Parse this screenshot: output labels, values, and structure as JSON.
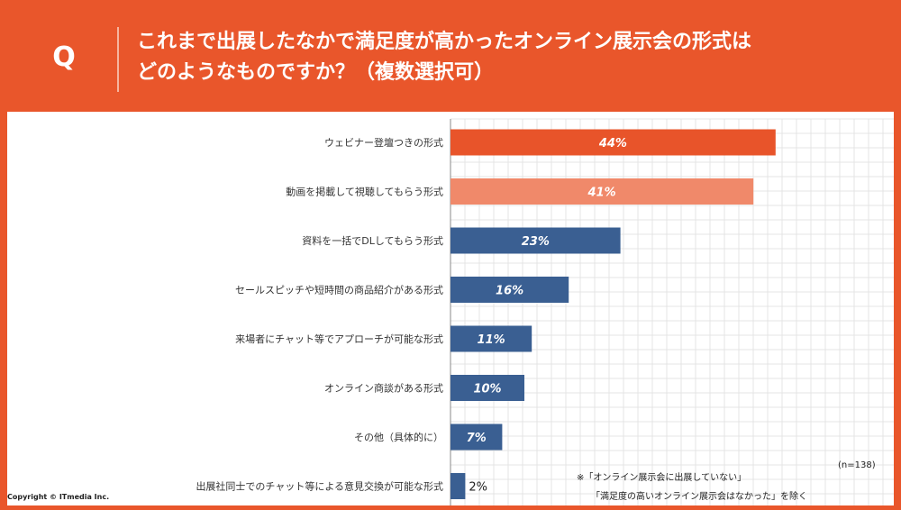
{
  "header": {
    "badge": "Q",
    "question": "これまで出展したなかで満足度が高かったオンライン展示会の形式は\nどのようなものですか？（複数選択可）"
  },
  "chart_data": {
    "type": "bar",
    "orientation": "horizontal",
    "categories": [
      "ウェビナー登壇つきの形式",
      "動画を掲載して視聴してもらう形式",
      "資料を一括でDLしてもらう形式",
      "セールスピッチや短時間の商品紹介がある形式",
      "来場者にチャット等でアプローチが可能な形式",
      "オンライン商談がある形式",
      "その他（具体的に）",
      "出展社同士でのチャット等による意見交換が可能な形式"
    ],
    "values": [
      44,
      41,
      23,
      16,
      11,
      10,
      7,
      2
    ],
    "data_labels": [
      "44%",
      "41%",
      "23%",
      "16%",
      "11%",
      "10%",
      "7%",
      "2%"
    ],
    "colors": [
      "#e8542a",
      "#f0896a",
      "#3a5f92",
      "#3a5f92",
      "#3a5f92",
      "#3a5f92",
      "#3a5f92",
      "#3a5f92"
    ],
    "xlim": [
      0,
      60
    ],
    "grid": true,
    "title": "",
    "xlabel": "",
    "ylabel": ""
  },
  "notes": {
    "sample": "(n=138)",
    "exclusion_line1": "※「オンライン展示会に出展していない」",
    "exclusion_line2": "「満足度の高いオンライン展示会はなかった」を除く"
  },
  "copyright": "Copyright © ITmedia Inc."
}
